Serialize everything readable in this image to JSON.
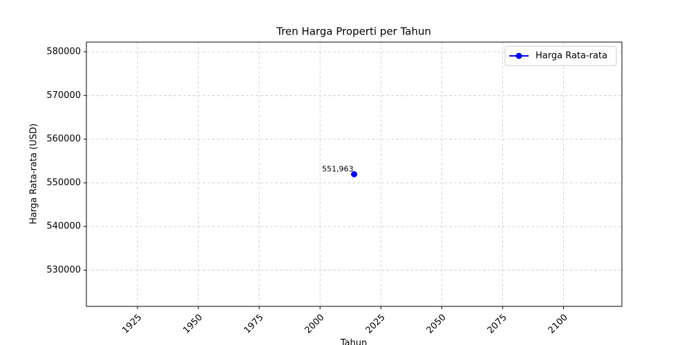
{
  "chart_data": {
    "type": "line",
    "title": "Tren Harga Properti per Tahun",
    "x_label": "Tahun",
    "y_label": "Harga Rata-rata (USD)",
    "x": [
      2014
    ],
    "series": [
      {
        "name": "Harga Rata-rata",
        "color": "#0000ff",
        "values": [
          551963
        ],
        "value_labels": [
          "551,963"
        ]
      }
    ],
    "xlim": [
      1904,
      2124
    ],
    "xticks": [
      1925,
      1950,
      1975,
      2000,
      2025,
      2050,
      2075,
      2100
    ],
    "ylim": [
      521718,
      582208
    ],
    "yticks": [
      530000,
      540000,
      550000,
      560000,
      570000,
      580000
    ],
    "grid": true,
    "legend": "upper right"
  }
}
